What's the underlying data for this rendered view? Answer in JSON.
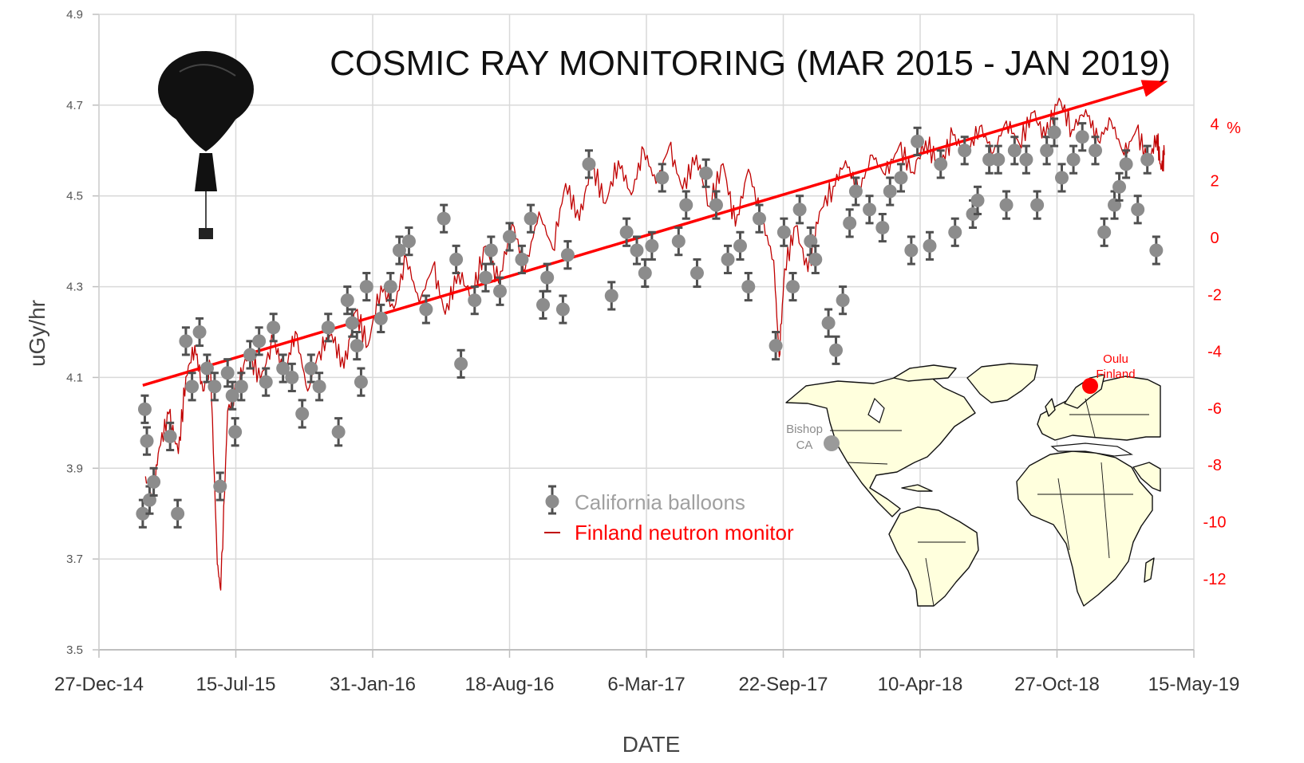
{
  "chart_data": {
    "type": "scatter",
    "title": "COSMIC RAY MONITORING  (MAR 2015 - JAN 2019)",
    "xlabel": "DATE",
    "ylabel": "uGy/hr",
    "y2label": "%",
    "xlim": [
      "2014-12-27",
      "2019-05-15"
    ],
    "ylim": [
      3.5,
      4.9
    ],
    "y2lim": [
      -14.5,
      7.85
    ],
    "x_ticks": [
      "27-Dec-14",
      "15-Jul-15",
      "31-Jan-16",
      "18-Aug-16",
      "6-Mar-17",
      "22-Sep-17",
      "10-Apr-18",
      "27-Oct-18",
      "15-May-19"
    ],
    "y_ticks": [
      "3.5",
      "3.7",
      "3.9",
      "4.1",
      "4.3",
      "4.5",
      "4.7",
      "4.9"
    ],
    "y2_ticks": [
      "4",
      "2",
      "0",
      "-2",
      "-4",
      "-6",
      "-8",
      "-10",
      "-12"
    ],
    "grid": true,
    "colors": {
      "balloons": "#8c8c8c",
      "error_bars": "#505050",
      "neutron": "#c00000",
      "trend": "#ff0000",
      "grid": "#d9d9d9",
      "map_land": "#ffffdd"
    },
    "series": [
      {
        "name": "California balloons",
        "kind": "scatter-with-error-bars",
        "error": 0.03,
        "points": [
          [
            "2015-03-01",
            3.8
          ],
          [
            "2015-03-04",
            4.03
          ],
          [
            "2015-03-07",
            3.96
          ],
          [
            "2015-03-11",
            3.83
          ],
          [
            "2015-03-17",
            3.87
          ],
          [
            "2015-04-10",
            3.97
          ],
          [
            "2015-04-21",
            3.8
          ],
          [
            "2015-05-03",
            4.18
          ],
          [
            "2015-05-12",
            4.08
          ],
          [
            "2015-05-23",
            4.2
          ],
          [
            "2015-06-03",
            4.12
          ],
          [
            "2015-06-14",
            4.08
          ],
          [
            "2015-06-22",
            3.86
          ],
          [
            "2015-07-03",
            4.11
          ],
          [
            "2015-07-10",
            4.06
          ],
          [
            "2015-07-14",
            3.98
          ],
          [
            "2015-07-23",
            4.08
          ],
          [
            "2015-08-05",
            4.15
          ],
          [
            "2015-08-18",
            4.18
          ],
          [
            "2015-08-28",
            4.09
          ],
          [
            "2015-09-08",
            4.21
          ],
          [
            "2015-09-22",
            4.12
          ],
          [
            "2015-10-05",
            4.1
          ],
          [
            "2015-10-20",
            4.02
          ],
          [
            "2015-11-02",
            4.12
          ],
          [
            "2015-11-14",
            4.08
          ],
          [
            "2015-11-27",
            4.21
          ],
          [
            "2015-12-12",
            3.98
          ],
          [
            "2015-12-25",
            4.27
          ],
          [
            "2016-01-01",
            4.22
          ],
          [
            "2016-01-08",
            4.17
          ],
          [
            "2016-01-14",
            4.09
          ],
          [
            "2016-01-22",
            4.3
          ],
          [
            "2016-02-12",
            4.23
          ],
          [
            "2016-02-26",
            4.3
          ],
          [
            "2016-03-10",
            4.38
          ],
          [
            "2016-03-24",
            4.4
          ],
          [
            "2016-04-18",
            4.25
          ],
          [
            "2016-05-14",
            4.45
          ],
          [
            "2016-06-01",
            4.36
          ],
          [
            "2016-06-08",
            4.13
          ],
          [
            "2016-06-28",
            4.27
          ],
          [
            "2016-07-14",
            4.32
          ],
          [
            "2016-07-22",
            4.38
          ],
          [
            "2016-08-04",
            4.29
          ],
          [
            "2016-08-18",
            4.41
          ],
          [
            "2016-09-05",
            4.36
          ],
          [
            "2016-09-18",
            4.45
          ],
          [
            "2016-10-06",
            4.26
          ],
          [
            "2016-10-12",
            4.32
          ],
          [
            "2016-11-04",
            4.25
          ],
          [
            "2016-11-11",
            4.37
          ],
          [
            "2016-12-12",
            4.57
          ],
          [
            "2017-01-14",
            4.28
          ],
          [
            "2017-02-05",
            4.42
          ],
          [
            "2017-02-20",
            4.38
          ],
          [
            "2017-03-04",
            4.33
          ],
          [
            "2017-03-14",
            4.39
          ],
          [
            "2017-03-29",
            4.54
          ],
          [
            "2017-04-22",
            4.4
          ],
          [
            "2017-05-03",
            4.48
          ],
          [
            "2017-05-19",
            4.33
          ],
          [
            "2017-06-01",
            4.55
          ],
          [
            "2017-06-16",
            4.48
          ],
          [
            "2017-07-03",
            4.36
          ],
          [
            "2017-07-21",
            4.39
          ],
          [
            "2017-08-02",
            4.3
          ],
          [
            "2017-08-18",
            4.45
          ],
          [
            "2017-09-11",
            4.17
          ],
          [
            "2017-09-23",
            4.42
          ],
          [
            "2017-10-06",
            4.3
          ],
          [
            "2017-10-16",
            4.47
          ],
          [
            "2017-11-01",
            4.4
          ],
          [
            "2017-11-08",
            4.36
          ],
          [
            "2017-11-27",
            4.22
          ],
          [
            "2017-12-08",
            4.16
          ],
          [
            "2017-12-18",
            4.27
          ],
          [
            "2017-12-28",
            4.44
          ],
          [
            "2018-01-06",
            4.51
          ],
          [
            "2018-01-26",
            4.47
          ],
          [
            "2018-02-14",
            4.43
          ],
          [
            "2018-02-25",
            4.51
          ],
          [
            "2018-03-13",
            4.54
          ],
          [
            "2018-03-28",
            4.38
          ],
          [
            "2018-04-06",
            4.62
          ],
          [
            "2018-04-24",
            4.39
          ],
          [
            "2018-05-10",
            4.57
          ],
          [
            "2018-05-31",
            4.42
          ],
          [
            "2018-06-14",
            4.6
          ],
          [
            "2018-06-26",
            4.46
          ],
          [
            "2018-07-03",
            4.49
          ],
          [
            "2018-07-20",
            4.58
          ],
          [
            "2018-08-02",
            4.58
          ],
          [
            "2018-08-14",
            4.48
          ],
          [
            "2018-08-26",
            4.6
          ],
          [
            "2018-09-12",
            4.58
          ],
          [
            "2018-09-28",
            4.48
          ],
          [
            "2018-10-12",
            4.6
          ],
          [
            "2018-10-23",
            4.64
          ],
          [
            "2018-11-03",
            4.54
          ],
          [
            "2018-11-20",
            4.58
          ],
          [
            "2018-12-03",
            4.63
          ],
          [
            "2018-12-22",
            4.6
          ],
          [
            "2019-01-04",
            4.42
          ],
          [
            "2019-01-19",
            4.48
          ],
          [
            "2019-02-05",
            4.57
          ],
          [
            "2019-02-22",
            4.47
          ],
          [
            "2019-03-08",
            4.58
          ],
          [
            "2019-03-21",
            4.38
          ],
          [
            "2019-01-26",
            4.52
          ]
        ]
      },
      {
        "name": "Finland neutron monitor",
        "kind": "line-right-axis",
        "points": [
          [
            "2015-03-05",
            -8.4
          ],
          [
            "2015-03-15",
            -9.2
          ],
          [
            "2015-03-25",
            -7.4
          ],
          [
            "2015-04-08",
            -6.2
          ],
          [
            "2015-04-22",
            -7.6
          ],
          [
            "2015-05-03",
            -4.9
          ],
          [
            "2015-05-16",
            -3.8
          ],
          [
            "2015-05-28",
            -5.4
          ],
          [
            "2015-06-08",
            -4.5
          ],
          [
            "2015-06-18",
            -11.5
          ],
          [
            "2015-06-23",
            -12.4
          ],
          [
            "2015-07-03",
            -6.1
          ],
          [
            "2015-07-18",
            -5.2
          ],
          [
            "2015-08-02",
            -4.0
          ],
          [
            "2015-08-20",
            -5.0
          ],
          [
            "2015-09-08",
            -3.6
          ],
          [
            "2015-09-24",
            -4.8
          ],
          [
            "2015-10-10",
            -3.3
          ],
          [
            "2015-10-28",
            -5.4
          ],
          [
            "2015-11-14",
            -4.0
          ],
          [
            "2015-12-02",
            -3.4
          ],
          [
            "2015-12-20",
            -4.6
          ],
          [
            "2016-01-06",
            -2.6
          ],
          [
            "2016-01-24",
            -3.8
          ],
          [
            "2016-02-12",
            -1.7
          ],
          [
            "2016-03-02",
            -2.5
          ],
          [
            "2016-03-20",
            -0.7
          ],
          [
            "2016-04-08",
            -2.3
          ],
          [
            "2016-04-28",
            -1.0
          ],
          [
            "2016-05-16",
            -2.7
          ],
          [
            "2016-06-04",
            -1.2
          ],
          [
            "2016-06-24",
            -2.1
          ],
          [
            "2016-07-14",
            -0.3
          ],
          [
            "2016-08-02",
            -1.6
          ],
          [
            "2016-08-22",
            0.5
          ],
          [
            "2016-09-10",
            -1.1
          ],
          [
            "2016-09-30",
            0.9
          ],
          [
            "2016-10-20",
            -0.4
          ],
          [
            "2016-11-08",
            1.9
          ],
          [
            "2016-11-28",
            0.6
          ],
          [
            "2016-12-16",
            2.6
          ],
          [
            "2017-01-05",
            1.2
          ],
          [
            "2017-01-24",
            2.7
          ],
          [
            "2017-02-12",
            1.5
          ],
          [
            "2017-03-02",
            3.1
          ],
          [
            "2017-03-20",
            1.9
          ],
          [
            "2017-04-08",
            3.2
          ],
          [
            "2017-04-28",
            1.7
          ],
          [
            "2017-05-18",
            2.9
          ],
          [
            "2017-06-06",
            1.1
          ],
          [
            "2017-06-26",
            2.6
          ],
          [
            "2017-07-14",
            0.4
          ],
          [
            "2017-08-02",
            2.4
          ],
          [
            "2017-08-22",
            0.6
          ],
          [
            "2017-09-08",
            -0.8
          ],
          [
            "2017-09-16",
            -4.2
          ],
          [
            "2017-09-24",
            -1.1
          ],
          [
            "2017-10-10",
            0.4
          ],
          [
            "2017-10-28",
            -1.2
          ],
          [
            "2017-11-14",
            0.9
          ],
          [
            "2017-12-04",
            1.8
          ],
          [
            "2017-12-22",
            2.7
          ],
          [
            "2018-01-10",
            1.6
          ],
          [
            "2018-01-30",
            2.9
          ],
          [
            "2018-02-18",
            2.2
          ],
          [
            "2018-03-10",
            3.2
          ],
          [
            "2018-03-30",
            2.3
          ],
          [
            "2018-04-18",
            3.4
          ],
          [
            "2018-05-08",
            2.5
          ],
          [
            "2018-05-28",
            3.6
          ],
          [
            "2018-06-16",
            2.9
          ],
          [
            "2018-07-06",
            3.9
          ],
          [
            "2018-07-26",
            3.0
          ],
          [
            "2018-08-14",
            4.1
          ],
          [
            "2018-09-02",
            3.3
          ],
          [
            "2018-09-22",
            4.4
          ],
          [
            "2018-10-10",
            3.5
          ],
          [
            "2018-10-30",
            4.9
          ],
          [
            "2018-11-18",
            3.8
          ],
          [
            "2018-12-08",
            4.5
          ],
          [
            "2018-12-26",
            3.4
          ],
          [
            "2019-01-14",
            4.1
          ],
          [
            "2019-02-02",
            2.9
          ],
          [
            "2019-02-20",
            3.8
          ],
          [
            "2019-03-10",
            2.6
          ],
          [
            "2019-03-22",
            3.6
          ],
          [
            "2019-03-28",
            2.4
          ],
          [
            "2019-04-02",
            2.9
          ]
        ]
      },
      {
        "name": "trend",
        "kind": "arrow-right-axis",
        "points": [
          [
            "2015-03-01",
            -5.2
          ],
          [
            "2019-04-07",
            5.5
          ]
        ]
      }
    ],
    "legend": {
      "position": "center-bottom",
      "entries": [
        "California balloons",
        "Finland neutron monitor"
      ]
    },
    "map_inset": {
      "labels": [
        {
          "name": "Bishop\nCA",
          "lines": [
            "Bishop",
            "CA"
          ],
          "color": "#8c8c8c"
        },
        {
          "name": "Oulu\nFinland",
          "lines": [
            "Oulu",
            "Finland"
          ],
          "color": "#ff0000"
        }
      ]
    }
  }
}
